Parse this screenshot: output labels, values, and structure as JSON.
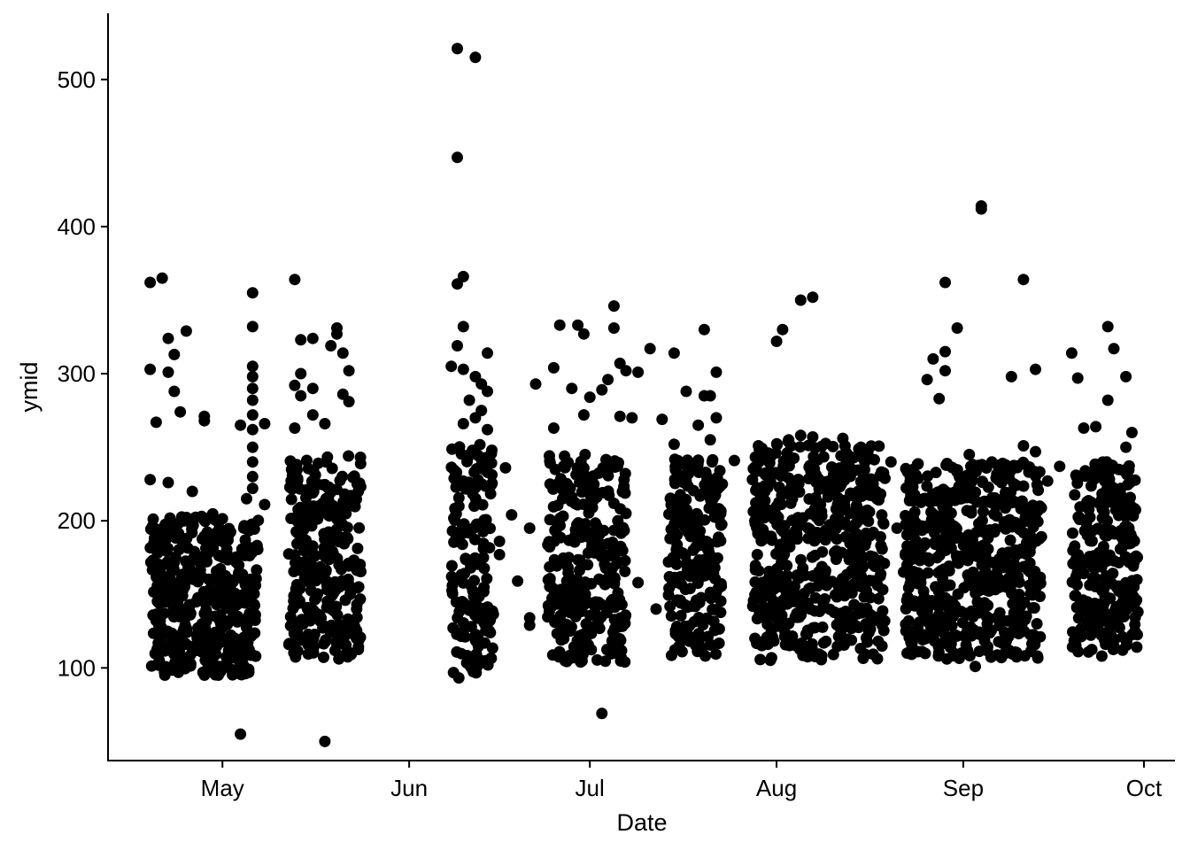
{
  "chart_data": {
    "type": "scatter",
    "title": "",
    "xlabel": "Date",
    "ylabel": "ymid",
    "xlim": [
      "2017-04-12",
      "2017-10-06"
    ],
    "ylim": [
      37,
      545
    ],
    "x_ticks": [
      {
        "date": "2017-05-01",
        "label": "May"
      },
      {
        "date": "2017-06-01",
        "label": "Jun"
      },
      {
        "date": "2017-07-01",
        "label": "Jul"
      },
      {
        "date": "2017-08-01",
        "label": "Aug"
      },
      {
        "date": "2017-09-01",
        "label": "Sep"
      },
      {
        "date": "2017-10-01",
        "label": "Oct"
      }
    ],
    "y_ticks": [
      100,
      200,
      300,
      400,
      500
    ],
    "grid": false,
    "legend": "none",
    "point_color": "#000000",
    "dense_clusters": [
      {
        "start": "2017-04-19",
        "end": "2017-05-07",
        "y_low": 95,
        "y_high": 205
      },
      {
        "start": "2017-05-12",
        "end": "2017-05-24",
        "y_low": 106,
        "y_high": 245
      },
      {
        "start": "2017-06-08",
        "end": "2017-06-15",
        "y_low": 92,
        "y_high": 255
      },
      {
        "start": "2017-06-24",
        "end": "2017-07-07",
        "y_low": 104,
        "y_high": 245
      },
      {
        "start": "2017-07-14",
        "end": "2017-07-23",
        "y_low": 107,
        "y_high": 242
      },
      {
        "start": "2017-07-28",
        "end": "2017-08-19",
        "y_low": 105,
        "y_high": 255
      },
      {
        "start": "2017-08-22",
        "end": "2017-09-14",
        "y_low": 106,
        "y_high": 240
      },
      {
        "start": "2017-09-19",
        "end": "2017-09-30",
        "y_low": 110,
        "y_high": 240
      }
    ],
    "points": [
      {
        "x": "2017-04-19",
        "y": 362
      },
      {
        "x": "2017-04-21",
        "y": 365
      },
      {
        "x": "2017-04-22",
        "y": 324
      },
      {
        "x": "2017-04-23",
        "y": 313
      },
      {
        "x": "2017-04-25",
        "y": 329
      },
      {
        "x": "2017-04-19",
        "y": 303
      },
      {
        "x": "2017-04-22",
        "y": 301
      },
      {
        "x": "2017-04-23",
        "y": 288
      },
      {
        "x": "2017-04-20",
        "y": 267
      },
      {
        "x": "2017-04-24",
        "y": 274
      },
      {
        "x": "2017-04-28",
        "y": 271
      },
      {
        "x": "2017-04-28",
        "y": 268
      },
      {
        "x": "2017-04-19",
        "y": 228
      },
      {
        "x": "2017-04-22",
        "y": 226
      },
      {
        "x": "2017-04-26",
        "y": 220
      },
      {
        "x": "2017-05-06",
        "y": 355
      },
      {
        "x": "2017-05-06",
        "y": 332
      },
      {
        "x": "2017-05-06",
        "y": 305
      },
      {
        "x": "2017-05-06",
        "y": 298
      },
      {
        "x": "2017-05-06",
        "y": 290
      },
      {
        "x": "2017-05-06",
        "y": 282
      },
      {
        "x": "2017-05-06",
        "y": 272
      },
      {
        "x": "2017-05-06",
        "y": 262
      },
      {
        "x": "2017-05-06",
        "y": 250
      },
      {
        "x": "2017-05-06",
        "y": 240
      },
      {
        "x": "2017-05-06",
        "y": 230
      },
      {
        "x": "2017-05-06",
        "y": 222
      },
      {
        "x": "2017-05-04",
        "y": 265
      },
      {
        "x": "2017-05-08",
        "y": 266
      },
      {
        "x": "2017-05-08",
        "y": 211
      },
      {
        "x": "2017-05-05",
        "y": 215
      },
      {
        "x": "2017-05-04",
        "y": 55
      },
      {
        "x": "2017-05-13",
        "y": 364
      },
      {
        "x": "2017-05-14",
        "y": 323
      },
      {
        "x": "2017-05-16",
        "y": 324
      },
      {
        "x": "2017-05-20",
        "y": 331
      },
      {
        "x": "2017-05-20",
        "y": 327
      },
      {
        "x": "2017-05-19",
        "y": 319
      },
      {
        "x": "2017-05-21",
        "y": 314
      },
      {
        "x": "2017-05-22",
        "y": 302
      },
      {
        "x": "2017-05-14",
        "y": 300
      },
      {
        "x": "2017-05-13",
        "y": 292
      },
      {
        "x": "2017-05-16",
        "y": 290
      },
      {
        "x": "2017-05-14",
        "y": 285
      },
      {
        "x": "2017-05-21",
        "y": 286
      },
      {
        "x": "2017-05-22",
        "y": 281
      },
      {
        "x": "2017-05-16",
        "y": 272
      },
      {
        "x": "2017-05-18",
        "y": 266
      },
      {
        "x": "2017-05-13",
        "y": 263
      },
      {
        "x": "2017-05-18",
        "y": 50
      },
      {
        "x": "2017-06-09",
        "y": 521
      },
      {
        "x": "2017-06-12",
        "y": 515
      },
      {
        "x": "2017-06-09",
        "y": 447
      },
      {
        "x": "2017-06-10",
        "y": 366
      },
      {
        "x": "2017-06-09",
        "y": 361
      },
      {
        "x": "2017-06-10",
        "y": 332
      },
      {
        "x": "2017-06-09",
        "y": 319
      },
      {
        "x": "2017-06-14",
        "y": 314
      },
      {
        "x": "2017-06-08",
        "y": 305
      },
      {
        "x": "2017-06-10",
        "y": 303
      },
      {
        "x": "2017-06-12",
        "y": 298
      },
      {
        "x": "2017-06-13",
        "y": 293
      },
      {
        "x": "2017-06-14",
        "y": 288
      },
      {
        "x": "2017-06-11",
        "y": 282
      },
      {
        "x": "2017-06-13",
        "y": 275
      },
      {
        "x": "2017-06-12",
        "y": 270
      },
      {
        "x": "2017-06-10",
        "y": 266
      },
      {
        "x": "2017-06-14",
        "y": 262
      },
      {
        "x": "2017-06-17",
        "y": 236
      },
      {
        "x": "2017-06-18",
        "y": 204
      },
      {
        "x": "2017-06-16",
        "y": 186
      },
      {
        "x": "2017-06-16",
        "y": 177
      },
      {
        "x": "2017-06-21",
        "y": 195
      },
      {
        "x": "2017-06-19",
        "y": 159
      },
      {
        "x": "2017-06-21",
        "y": 134
      },
      {
        "x": "2017-06-21",
        "y": 129
      },
      {
        "x": "2017-06-22",
        "y": 293
      },
      {
        "x": "2017-06-25",
        "y": 304
      },
      {
        "x": "2017-06-26",
        "y": 333
      },
      {
        "x": "2017-06-29",
        "y": 333
      },
      {
        "x": "2017-06-30",
        "y": 327
      },
      {
        "x": "2017-07-05",
        "y": 346
      },
      {
        "x": "2017-07-05",
        "y": 331
      },
      {
        "x": "2017-07-06",
        "y": 307
      },
      {
        "x": "2017-07-07",
        "y": 302
      },
      {
        "x": "2017-07-09",
        "y": 301
      },
      {
        "x": "2017-07-11",
        "y": 317
      },
      {
        "x": "2017-07-03",
        "y": 289
      },
      {
        "x": "2017-06-28",
        "y": 290
      },
      {
        "x": "2017-07-01",
        "y": 284
      },
      {
        "x": "2017-07-04",
        "y": 296
      },
      {
        "x": "2017-06-25",
        "y": 263
      },
      {
        "x": "2017-06-30",
        "y": 272
      },
      {
        "x": "2017-07-06",
        "y": 271
      },
      {
        "x": "2017-07-08",
        "y": 270
      },
      {
        "x": "2017-07-07",
        "y": 205
      },
      {
        "x": "2017-07-09",
        "y": 158
      },
      {
        "x": "2017-07-12",
        "y": 140
      },
      {
        "x": "2017-07-13",
        "y": 269
      },
      {
        "x": "2017-07-03",
        "y": 69
      },
      {
        "x": "2017-07-15",
        "y": 314
      },
      {
        "x": "2017-07-20",
        "y": 330
      },
      {
        "x": "2017-07-22",
        "y": 301
      },
      {
        "x": "2017-07-17",
        "y": 288
      },
      {
        "x": "2017-07-20",
        "y": 285
      },
      {
        "x": "2017-07-21",
        "y": 285
      },
      {
        "x": "2017-07-22",
        "y": 270
      },
      {
        "x": "2017-07-19",
        "y": 265
      },
      {
        "x": "2017-07-21",
        "y": 255
      },
      {
        "x": "2017-07-15",
        "y": 252
      },
      {
        "x": "2017-07-25",
        "y": 241
      },
      {
        "x": "2017-07-23",
        "y": 225
      },
      {
        "x": "2017-08-01",
        "y": 322
      },
      {
        "x": "2017-08-02",
        "y": 330
      },
      {
        "x": "2017-08-05",
        "y": 350
      },
      {
        "x": "2017-08-07",
        "y": 352
      },
      {
        "x": "2017-07-29",
        "y": 251
      },
      {
        "x": "2017-08-03",
        "y": 255
      },
      {
        "x": "2017-08-05",
        "y": 258
      },
      {
        "x": "2017-08-07",
        "y": 257
      },
      {
        "x": "2017-08-12",
        "y": 256
      },
      {
        "x": "2017-08-15",
        "y": 250
      },
      {
        "x": "2017-08-20",
        "y": 240
      },
      {
        "x": "2017-08-21",
        "y": 195
      },
      {
        "x": "2017-08-18",
        "y": 215
      },
      {
        "x": "2017-08-26",
        "y": 296
      },
      {
        "x": "2017-08-27",
        "y": 310
      },
      {
        "x": "2017-08-28",
        "y": 283
      },
      {
        "x": "2017-08-29",
        "y": 315
      },
      {
        "x": "2017-08-29",
        "y": 362
      },
      {
        "x": "2017-08-29",
        "y": 302
      },
      {
        "x": "2017-08-31",
        "y": 331
      },
      {
        "x": "2017-09-02",
        "y": 245
      },
      {
        "x": "2017-09-04",
        "y": 414
      },
      {
        "x": "2017-09-04",
        "y": 412
      },
      {
        "x": "2017-09-09",
        "y": 298
      },
      {
        "x": "2017-09-11",
        "y": 364
      },
      {
        "x": "2017-09-13",
        "y": 303
      },
      {
        "x": "2017-09-11",
        "y": 251
      },
      {
        "x": "2017-09-13",
        "y": 247
      },
      {
        "x": "2017-09-15",
        "y": 227
      },
      {
        "x": "2017-09-03",
        "y": 101
      },
      {
        "x": "2017-09-19",
        "y": 314
      },
      {
        "x": "2017-09-20",
        "y": 297
      },
      {
        "x": "2017-09-21",
        "y": 263
      },
      {
        "x": "2017-09-23",
        "y": 264
      },
      {
        "x": "2017-09-25",
        "y": 332
      },
      {
        "x": "2017-09-26",
        "y": 317
      },
      {
        "x": "2017-09-25",
        "y": 282
      },
      {
        "x": "2017-09-28",
        "y": 298
      },
      {
        "x": "2017-09-28",
        "y": 250
      },
      {
        "x": "2017-09-29",
        "y": 260
      },
      {
        "x": "2017-09-17",
        "y": 237
      },
      {
        "x": "2017-09-24",
        "y": 108
      }
    ]
  }
}
